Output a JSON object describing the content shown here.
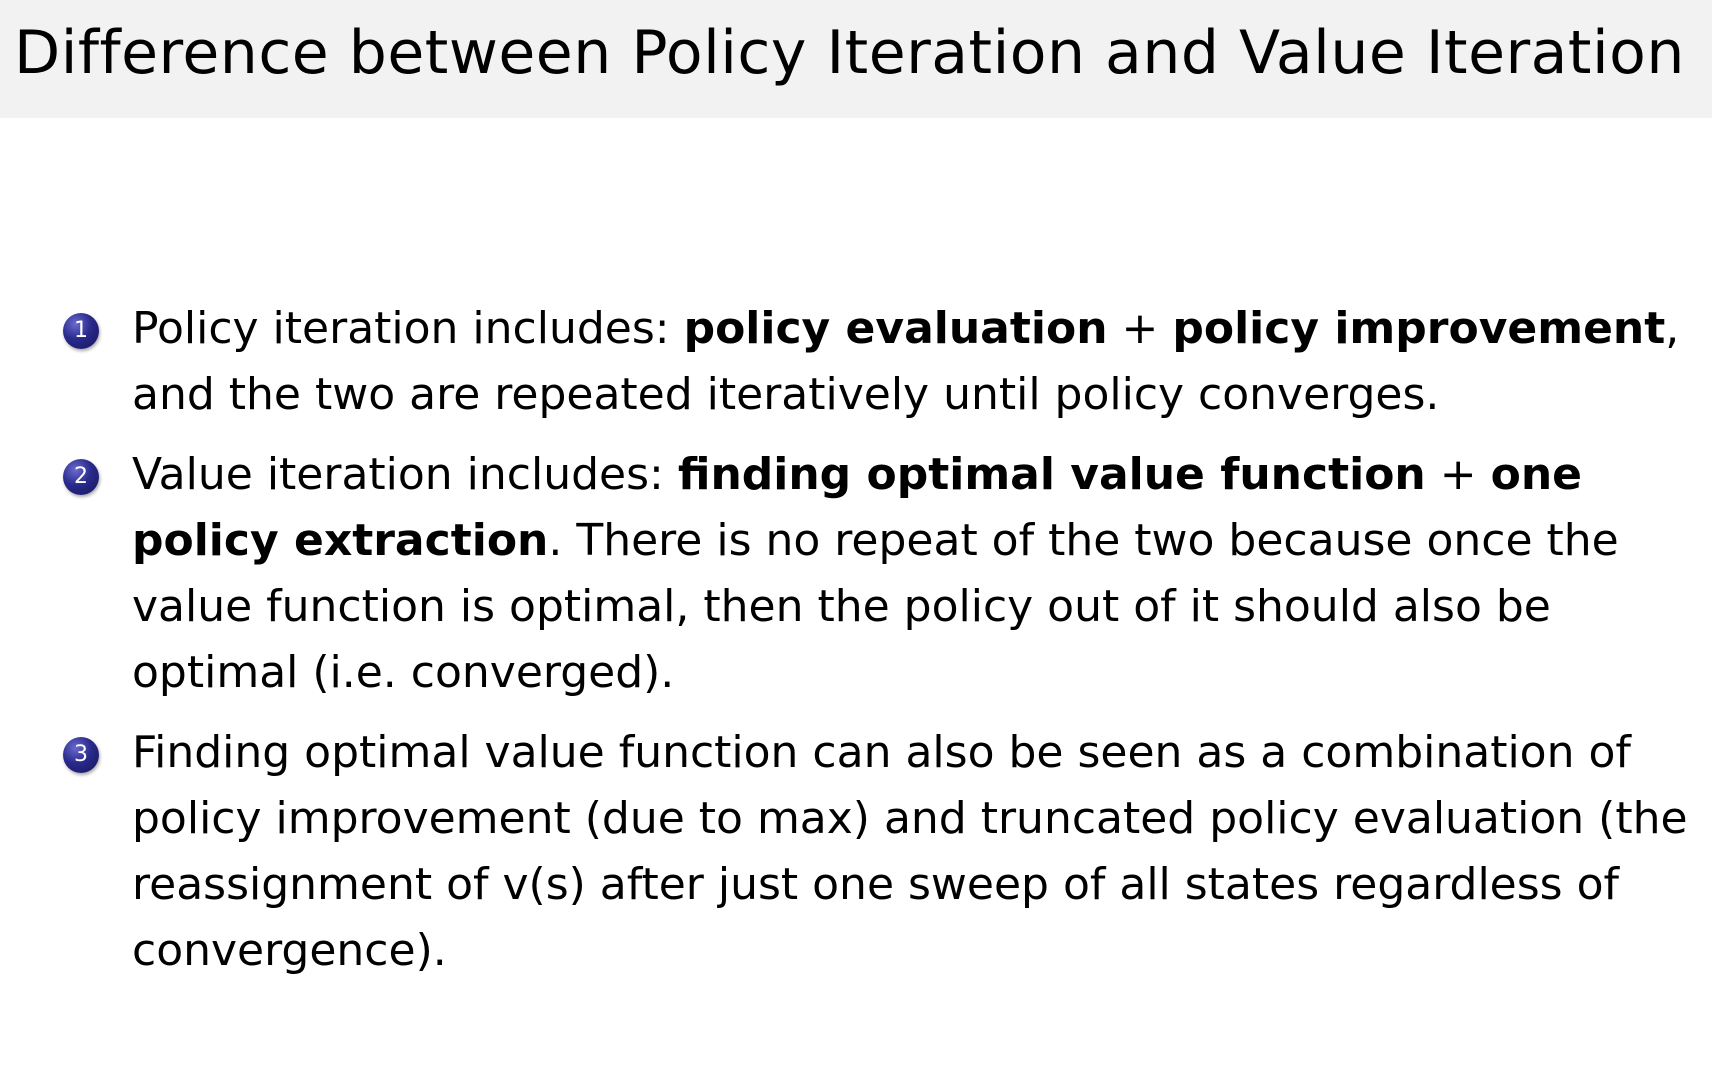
{
  "title": "Difference between Policy Iteration and Value Iteration",
  "items": [
    {
      "number": "1",
      "segments": [
        {
          "text": "Policy iteration includes: ",
          "bold": false
        },
        {
          "text": "policy evaluation",
          "bold": true
        },
        {
          "text": " + ",
          "bold": false
        },
        {
          "text": "policy improvement",
          "bold": true
        },
        {
          "text": ", and the two are repeated iteratively until policy converges.",
          "bold": false
        }
      ]
    },
    {
      "number": "2",
      "segments": [
        {
          "text": "Value iteration includes: ",
          "bold": false
        },
        {
          "text": "finding optimal value function",
          "bold": true
        },
        {
          "text": " + ",
          "bold": false
        },
        {
          "text": "one policy extraction",
          "bold": true
        },
        {
          "text": ". There is no repeat of the two because once the value function is optimal, then the policy out of it should also be optimal (i.e. converged).",
          "bold": false
        }
      ]
    },
    {
      "number": "3",
      "segments": [
        {
          "text": "Finding optimal value function can also be seen as a combination of policy improvement (due to max) and truncated policy evaluation (the reassignment of v(s) after just one sweep of all states regardless of convergence).",
          "bold": false
        }
      ]
    }
  ],
  "colors": {
    "header_bg": "#f2f2f2",
    "bullet": "#2a2a8c"
  }
}
